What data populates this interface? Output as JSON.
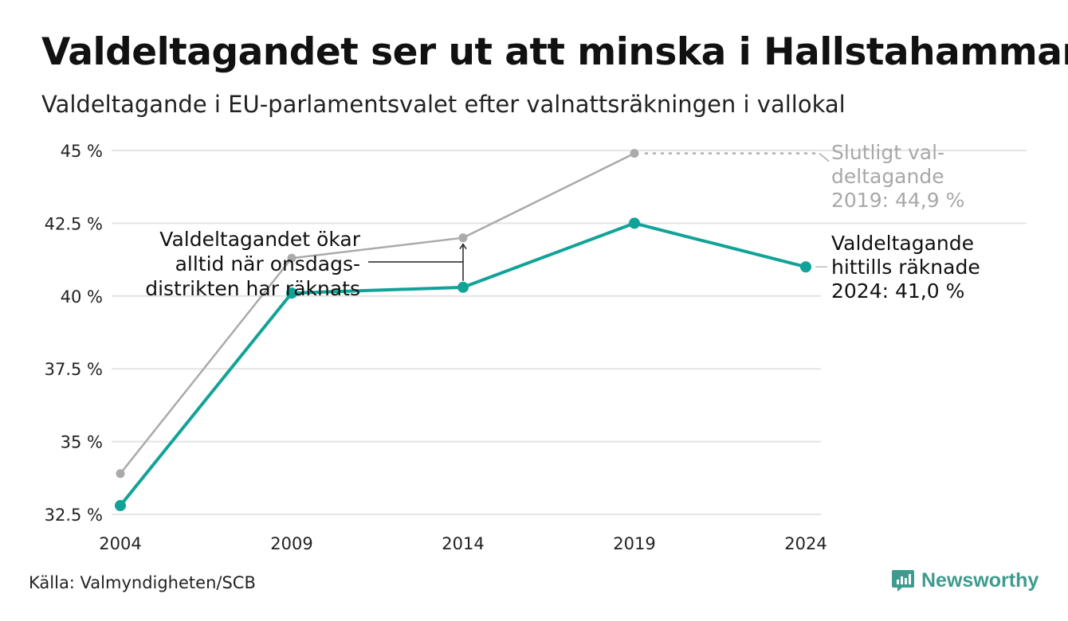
{
  "title": "Valdeltagandet ser ut att minska i Hallstahammar",
  "subtitle": "Valdeltagande i EU-parlamentsvalet efter valnattsräkningen i vallokal",
  "source": "Källa: Valmyndigheten/SCB",
  "brand": "Newsworthy",
  "colors": {
    "counted": "#12a398",
    "final": "#aaaaaa",
    "grid": "#e4e4e4",
    "brand": "#3d9b8f"
  },
  "chart_data": {
    "type": "line",
    "x": [
      2004,
      2009,
      2014,
      2019,
      2024
    ],
    "xticks": [
      "2004",
      "2009",
      "2014",
      "2019",
      "2024"
    ],
    "ylim": [
      32.5,
      45
    ],
    "yticks": [
      {
        "value": 45,
        "label": "45 %"
      },
      {
        "value": 42.5,
        "label": "42.5 %"
      },
      {
        "value": 40,
        "label": "40 %"
      },
      {
        "value": 37.5,
        "label": "37.5 %"
      },
      {
        "value": 35,
        "label": "35 %"
      },
      {
        "value": 32.5,
        "label": "32.5 %"
      }
    ],
    "grid": true,
    "series": [
      {
        "key": "final",
        "color": "#aaaaaa",
        "values": [
          33.9,
          41.3,
          42.0,
          44.9,
          null
        ]
      },
      {
        "key": "counted",
        "color": "#12a398",
        "values": [
          32.8,
          40.1,
          40.3,
          42.5,
          41.0
        ]
      }
    ],
    "annotations": {
      "final_label": [
        "Slutligt val-",
        "deltagande",
        "2019: 44,9 %"
      ],
      "counted_label": [
        "Valdeltagande",
        "hittills räknade",
        "2024: 41,0 %"
      ],
      "increase_note": [
        "Valdeltagandet ökar",
        "alltid när onsdags-",
        "distrikten har räknats"
      ]
    }
  }
}
